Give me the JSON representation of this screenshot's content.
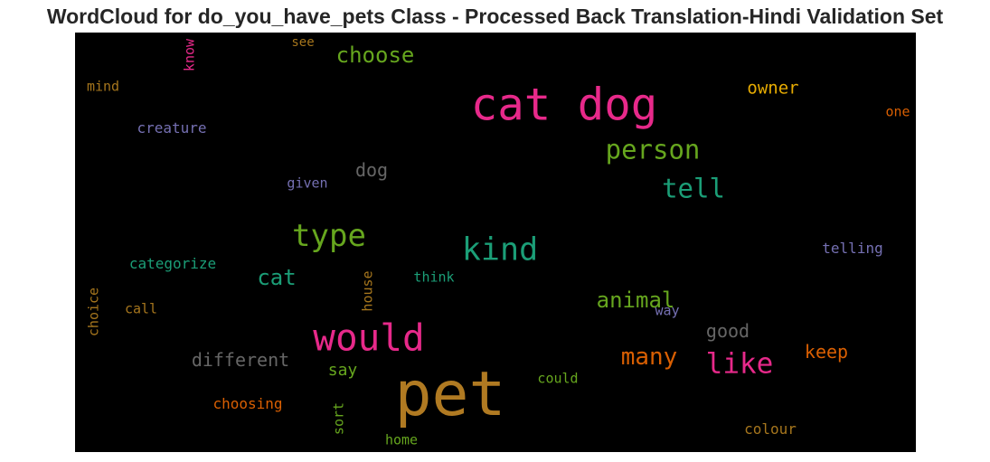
{
  "title": "WordCloud for do_you_have_pets Class - Processed Back Translation-Hindi Validation Set",
  "chart_data": {
    "type": "wordcloud",
    "background": "#000000",
    "words": [
      {
        "text": "pet",
        "weight": 1.0,
        "color": "#b07a22",
        "orientation": "horizontal"
      },
      {
        "text": "cat dog",
        "weight": 0.72,
        "color": "#e7298a",
        "orientation": "horizontal"
      },
      {
        "text": "would",
        "weight": 0.6,
        "color": "#e7298a",
        "orientation": "horizontal"
      },
      {
        "text": "kind",
        "weight": 0.52,
        "color": "#1b9e77",
        "orientation": "horizontal"
      },
      {
        "text": "type",
        "weight": 0.5,
        "color": "#66a61e",
        "orientation": "horizontal"
      },
      {
        "text": "like",
        "weight": 0.45,
        "color": "#e7298a",
        "orientation": "horizontal"
      },
      {
        "text": "person",
        "weight": 0.42,
        "color": "#66a61e",
        "orientation": "horizontal"
      },
      {
        "text": "tell",
        "weight": 0.42,
        "color": "#1b9e77",
        "orientation": "horizontal"
      },
      {
        "text": "many",
        "weight": 0.38,
        "color": "#d95f02",
        "orientation": "horizontal"
      },
      {
        "text": "animal",
        "weight": 0.36,
        "color": "#66a61e",
        "orientation": "horizontal"
      },
      {
        "text": "cat",
        "weight": 0.36,
        "color": "#1b9e77",
        "orientation": "horizontal"
      },
      {
        "text": "choose",
        "weight": 0.35,
        "color": "#66a61e",
        "orientation": "horizontal"
      },
      {
        "text": "different",
        "weight": 0.3,
        "color": "#666666",
        "orientation": "horizontal"
      },
      {
        "text": "dog",
        "weight": 0.3,
        "color": "#666666",
        "orientation": "horizontal"
      },
      {
        "text": "good",
        "weight": 0.3,
        "color": "#666666",
        "orientation": "horizontal"
      },
      {
        "text": "keep",
        "weight": 0.3,
        "color": "#d95f02",
        "orientation": "horizontal"
      },
      {
        "text": "owner",
        "weight": 0.28,
        "color": "#e6ab02",
        "orientation": "horizontal"
      },
      {
        "text": "say",
        "weight": 0.27,
        "color": "#66a61e",
        "orientation": "horizontal"
      },
      {
        "text": "choosing",
        "weight": 0.24,
        "color": "#d95f02",
        "orientation": "horizontal"
      },
      {
        "text": "colour",
        "weight": 0.24,
        "color": "#a6761d",
        "orientation": "horizontal"
      },
      {
        "text": "categorize",
        "weight": 0.23,
        "color": "#1b9e77",
        "orientation": "horizontal"
      },
      {
        "text": "telling",
        "weight": 0.23,
        "color": "#7570b3",
        "orientation": "horizontal"
      },
      {
        "text": "creature",
        "weight": 0.23,
        "color": "#7570b3",
        "orientation": "horizontal"
      },
      {
        "text": "could",
        "weight": 0.22,
        "color": "#66a61e",
        "orientation": "horizontal"
      },
      {
        "text": "think",
        "weight": 0.22,
        "color": "#1b9e77",
        "orientation": "horizontal"
      },
      {
        "text": "home",
        "weight": 0.22,
        "color": "#66a61e",
        "orientation": "horizontal"
      },
      {
        "text": "given",
        "weight": 0.22,
        "color": "#7570b3",
        "orientation": "horizontal"
      },
      {
        "text": "call",
        "weight": 0.22,
        "color": "#a6761d",
        "orientation": "horizontal"
      },
      {
        "text": "mind",
        "weight": 0.22,
        "color": "#a6761d",
        "orientation": "horizontal"
      },
      {
        "text": "one",
        "weight": 0.22,
        "color": "#d95f02",
        "orientation": "horizontal"
      },
      {
        "text": "way",
        "weight": 0.22,
        "color": "#7570b3",
        "orientation": "horizontal"
      },
      {
        "text": "see",
        "weight": 0.2,
        "color": "#a6761d",
        "orientation": "horizontal"
      },
      {
        "text": "know",
        "weight": 0.22,
        "color": "#e7298a",
        "orientation": "vertical"
      },
      {
        "text": "choice",
        "weight": 0.22,
        "color": "#a6761d",
        "orientation": "vertical"
      },
      {
        "text": "house",
        "weight": 0.22,
        "color": "#a6761d",
        "orientation": "vertical"
      },
      {
        "text": "sort",
        "weight": 0.22,
        "color": "#66a61e",
        "orientation": "vertical"
      }
    ]
  }
}
